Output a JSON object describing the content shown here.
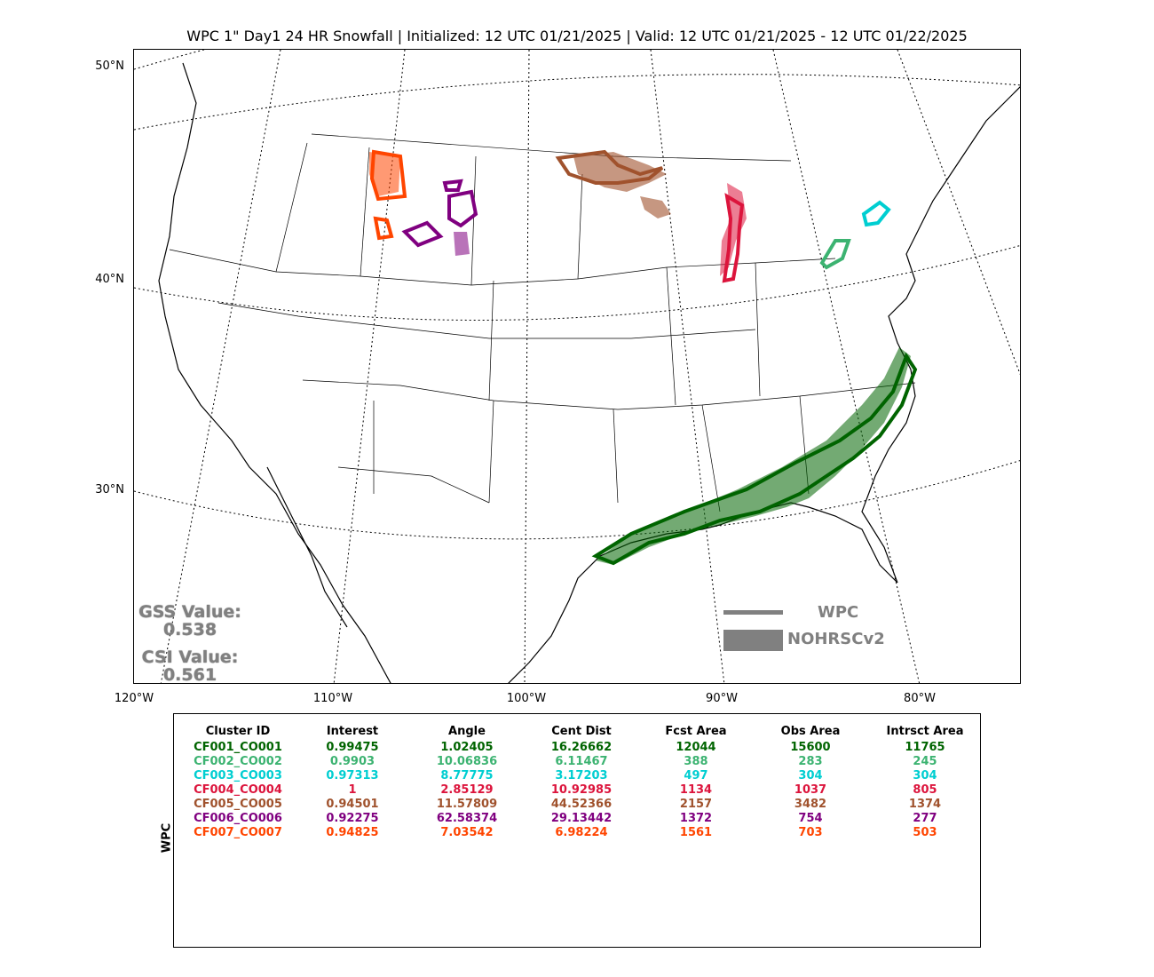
{
  "title": "WPC 1\" Day1 24 HR Snowfall | Initialized: 12 UTC 01/21/2025 | Valid: 12 UTC 01/21/2025 - 12 UTC 01/22/2025",
  "lat_labels": [
    "50°N",
    "40°N",
    "30°N"
  ],
  "lon_labels": [
    "120°W",
    "110°W",
    "100°W",
    "90°W",
    "80°W"
  ],
  "scores": {
    "gss_label": "GSS Value:",
    "gss_value": "0.538",
    "csi_label": "CSI Value:",
    "csi_value": "0.561"
  },
  "legend": {
    "forecast": "WPC",
    "observed": "NOHRSCv2",
    "forecast_color": "#808080",
    "observed_color": "#808080"
  },
  "table": {
    "ylabel": "WPC",
    "headers": [
      "Cluster ID",
      "Interest",
      "Angle",
      "Cent Dist",
      "Fcst Area",
      "Obs Area",
      "Intrsct Area"
    ],
    "rows": [
      {
        "color": "#006400",
        "cells": [
          "CF001_CO001",
          "0.99475",
          "1.02405",
          "16.26662",
          "12044",
          "15600",
          "11765"
        ]
      },
      {
        "color": "#3cb371",
        "cells": [
          "CF002_CO002",
          "0.9903",
          "10.06836",
          "6.11467",
          "388",
          "283",
          "245"
        ]
      },
      {
        "color": "#00ced1",
        "cells": [
          "CF003_CO003",
          "0.97313",
          "8.77775",
          "3.17203",
          "497",
          "304",
          "304"
        ]
      },
      {
        "color": "#dc143c",
        "cells": [
          "CF004_CO004",
          "1",
          "2.85129",
          "10.92985",
          "1134",
          "1037",
          "805"
        ]
      },
      {
        "color": "#a0522d",
        "cells": [
          "CF005_CO005",
          "0.94501",
          "11.57809",
          "44.52366",
          "2157",
          "3482",
          "1374"
        ]
      },
      {
        "color": "#800080",
        "cells": [
          "CF006_CO006",
          "0.92275",
          "62.58374",
          "29.13442",
          "1372",
          "754",
          "277"
        ]
      },
      {
        "color": "#ff4500",
        "cells": [
          "CF007_CO007",
          "0.94825",
          "7.03542",
          "6.98224",
          "1561",
          "703",
          "503"
        ]
      }
    ]
  }
}
